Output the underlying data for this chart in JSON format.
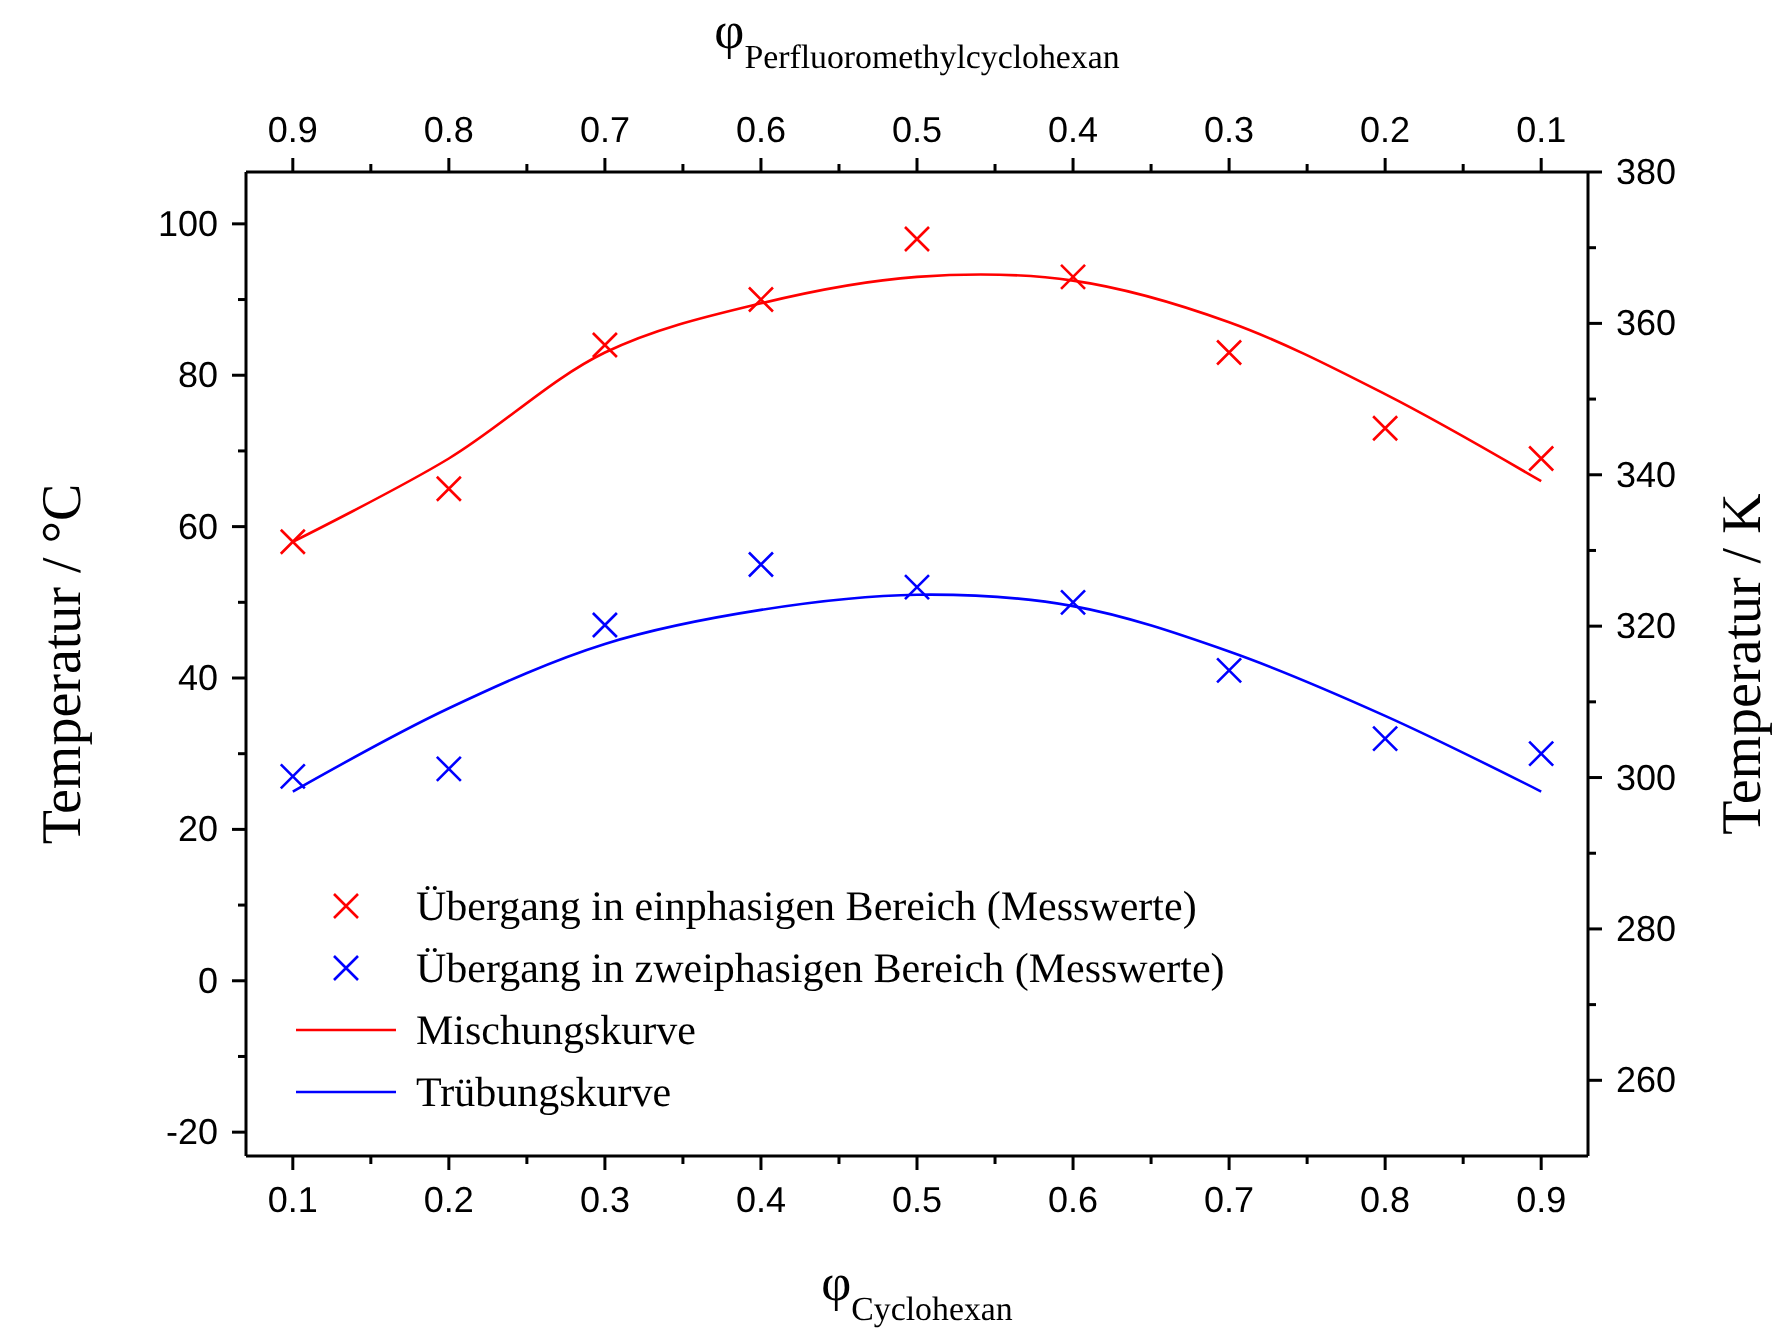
{
  "chart_data": {
    "type": "scatter",
    "xlabel": "φ$_{Cyclohexan}$",
    "x2label": "φ$_{Perfluoromethylcyclohexan}$",
    "ylabel": "Temperatur / °C",
    "y2label": "Temperatur / K",
    "xlim": [
      0.07,
      0.93
    ],
    "x2lim": [
      0.93,
      0.07
    ],
    "ylim": [
      -23.15,
      106.85
    ],
    "y2lim": [
      250,
      380
    ],
    "xticks": [
      0.1,
      {
        "value": 0.15,
        "label": null
      },
      0.2,
      {
        "value": 0.25,
        "label": null
      },
      0.3,
      {
        "value": 0.35,
        "label": null
      },
      0.4,
      {
        "value": 0.45,
        "label": null
      },
      0.5,
      {
        "value": 0.55,
        "label": null
      },
      0.6,
      {
        "value": 0.65,
        "label": null
      },
      0.7,
      {
        "value": 0.75,
        "label": null
      },
      0.8,
      {
        "value": 0.85,
        "label": null
      },
      0.9
    ],
    "x2ticks": [
      0.9,
      {
        "value": 0.85,
        "label": null
      },
      0.8,
      {
        "value": 0.75,
        "label": null
      },
      0.7,
      {
        "value": 0.65,
        "label": null
      },
      0.6,
      {
        "value": 0.55,
        "label": null
      },
      0.5,
      {
        "value": 0.45,
        "label": null
      },
      0.4,
      {
        "value": 0.35,
        "label": null
      },
      0.3,
      {
        "value": 0.25,
        "label": null
      },
      0.2,
      {
        "value": 0.15,
        "label": null
      },
      0.1
    ],
    "yticks": [
      -20,
      {
        "value": -10,
        "label": null
      },
      0,
      {
        "value": 10,
        "label": null
      },
      20,
      {
        "value": 30,
        "label": null
      },
      40,
      {
        "value": 50,
        "label": null
      },
      60,
      {
        "value": 70,
        "label": null
      },
      80,
      {
        "value": 90,
        "label": null
      },
      100
    ],
    "y2ticks": [
      260,
      {
        "value": 270,
        "label": null
      },
      280,
      {
        "value": 290,
        "label": null
      },
      300,
      {
        "value": 310,
        "label": null
      },
      320,
      {
        "value": 330,
        "label": null
      },
      340,
      {
        "value": 350,
        "label": null
      },
      360,
      {
        "value": 370,
        "label": null
      },
      380
    ],
    "x": [
      0.1,
      0.2,
      0.3,
      0.4,
      0.5,
      0.6,
      0.7,
      0.8,
      0.9
    ],
    "marker": "cross",
    "legend": "bottom left",
    "grid": false,
    "series": [
      {
        "name": "Übergang in einphasigen Bereich (Messwerte)",
        "color": "#ff0000",
        "values": [
          58,
          65,
          84,
          90,
          98,
          93,
          83,
          73,
          69
        ]
      },
      {
        "name": "Übergang in zweiphasigen Bereich (Messwerte)",
        "color": "#0000ff",
        "values": [
          27,
          28,
          47,
          55,
          52,
          50,
          41,
          32,
          30
        ]
      },
      {
        "name": "Mischungskurve",
        "type": "line",
        "marker": "none",
        "color": "#ff0000",
        "values": [
          58,
          69,
          83,
          89.5,
          93,
          92.5,
          87,
          77.5,
          66
        ]
      },
      {
        "name": "Trübungskurve",
        "type": "line",
        "marker": "none",
        "color": "#0000ff",
        "values": [
          25,
          36,
          44.5,
          49,
          51,
          49.5,
          43.5,
          35,
          25
        ]
      }
    ]
  }
}
